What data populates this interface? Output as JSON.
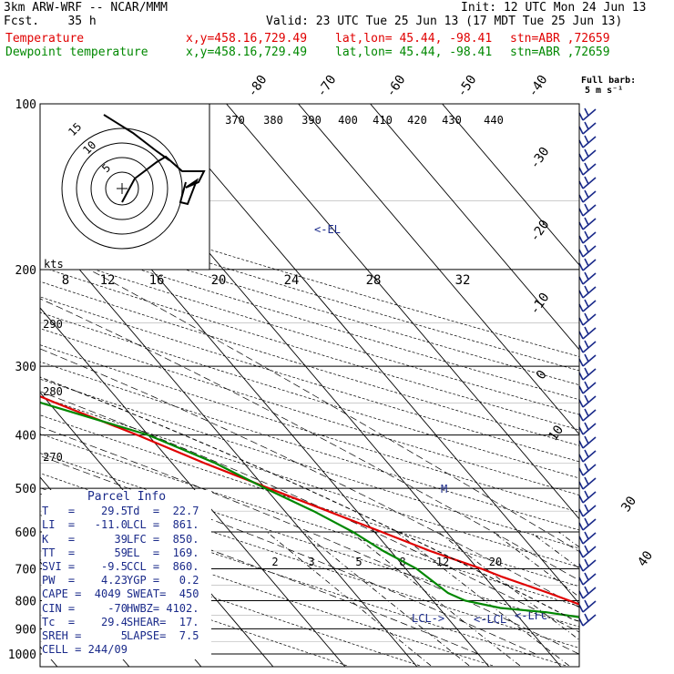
{
  "header": {
    "model": "3km ARW-WRF -- NCAR/MMM",
    "init": "Init: 12 UTC Mon 24 Jun 13",
    "fcst": "Fcst.    35 h",
    "valid": "Valid: 23 UTC Tue 25 Jun 13 (17 MDT Tue 25 Jun 13)",
    "temp_line": {
      "label": "Temperature",
      "xy": "x,y=458.16,729.49",
      "latlon": "lat,lon= 45.44, -98.41",
      "stn": "stn=ABR ,72659",
      "color": "#e00000"
    },
    "dew_line": {
      "label": "Dewpoint temperature",
      "xy": "x,y=458.16,729.49",
      "latlon": "lat,lon= 45.44, -98.41",
      "stn": "stn=ABR ,72659",
      "color": "#008800"
    }
  },
  "barb_legend": {
    "line1": "Full barb:",
    "line2": "5 m s⁻¹"
  },
  "hodograph": {
    "kts_label": "kts",
    "ring_labels": [
      "5",
      "10",
      "15"
    ]
  },
  "chart_data": {
    "type": "line",
    "title": "",
    "ylabel_levels": [
      "100",
      "200",
      "300",
      "400",
      "500",
      "600",
      "700",
      "800",
      "900",
      "1000"
    ],
    "isotherm_labels": [
      "-80",
      "-70",
      "-60",
      "-50",
      "-40",
      "-30",
      "-20",
      "-10",
      "0",
      "10",
      "30",
      "40"
    ],
    "theta_labels": [
      "370",
      "380",
      "390",
      "400",
      "410",
      "420",
      "430",
      "440"
    ],
    "theta_labels_lower": [
      "290",
      "280",
      "270"
    ],
    "mixing_ratio_labels_upper": [
      "8",
      "12",
      "16",
      "20",
      "24",
      "28",
      "32"
    ],
    "mixing_ratio_labels_lower": [
      "2",
      "3",
      "5",
      "8",
      "12",
      "20"
    ],
    "annotations": [
      "<-EL",
      "LCL->",
      "<-LCL",
      "<-LFC",
      "M"
    ],
    "series": [
      {
        "name": "Temperature",
        "color": "#e00000",
        "p": [
          1000,
          950,
          925,
          900,
          860,
          825,
          800,
          775,
          750,
          725,
          700,
          650,
          600,
          550,
          500,
          450,
          400,
          350,
          300,
          275,
          250,
          225,
          210,
          200,
          190,
          175,
          160,
          150,
          130,
          115,
          100
        ],
        "t": [
          29.5,
          27.0,
          25.0,
          23.0,
          23.3,
          20.8,
          19.0,
          17.0,
          14.8,
          12.5,
          10.5,
          5.5,
          1.0,
          -4.0,
          -9.5,
          -15.5,
          -21.5,
          -29.0,
          -37.0,
          -42.0,
          -47.0,
          -52.0,
          -55.0,
          -57.0,
          -57.5,
          -56.0,
          -58.0,
          -59.5,
          -60.0,
          -59.5,
          -60.0
        ]
      },
      {
        "name": "Dewpoint temperature",
        "color": "#008800",
        "p": [
          1000,
          950,
          925,
          900,
          860,
          840,
          825,
          800,
          775,
          700,
          650,
          600,
          550,
          500,
          450,
          400,
          350,
          300,
          270,
          250,
          225,
          210,
          200,
          180,
          160,
          140,
          120,
          100
        ],
        "t": [
          22.7,
          21.5,
          21.0,
          20.0,
          19.0,
          14.5,
          8.5,
          4.5,
          3.0,
          1.5,
          -1.0,
          -3.0,
          -6.0,
          -10.0,
          -14.0,
          -20.0,
          -31.0,
          -40.0,
          -46.0,
          -53.0,
          -59.0,
          -62.0,
          -64.0,
          -69.0,
          -74.0,
          -79.0,
          -83.0,
          -85.0
        ]
      }
    ],
    "parcel_info": {
      "title": "Parcel Info",
      "rows": [
        [
          "T   =    29.5",
          "Td  =  22.7"
        ],
        [
          "LI  =   -11.0",
          "LCL =  861."
        ],
        [
          "K   =      39",
          "LFC =  850."
        ],
        [
          "TT  =      59",
          "EL  =  169."
        ],
        [
          "SVI =    -9.5",
          "CCL =  860."
        ],
        [
          "PW  =    4.23",
          "YGP =   0.2"
        ],
        [
          "CAPE =  4049",
          "SWEAT=  450"
        ],
        [
          "CIN =     -70",
          "HWBZ= 4102."
        ],
        [
          "Tc  =    29.4",
          "SHEAR=  17."
        ],
        [
          "SREH =      5",
          "LAPSE=  7.5"
        ],
        [
          "CELL = 244/09",
          ""
        ]
      ]
    }
  }
}
